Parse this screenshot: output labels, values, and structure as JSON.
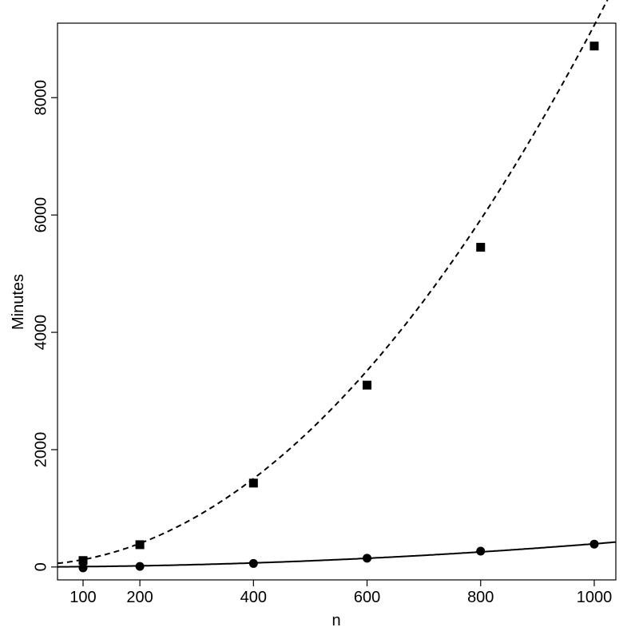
{
  "chart_data": {
    "type": "scatter",
    "title": "",
    "xlabel": "n",
    "ylabel": "Minutes",
    "xlim": [
      55,
      1038
    ],
    "ylim": [
      -220,
      9270
    ],
    "xticks": [
      100,
      200,
      400,
      600,
      800,
      1000
    ],
    "yticks": [
      0,
      2000,
      4000,
      6000,
      8000
    ],
    "grid": false,
    "legend": "none",
    "series": [
      {
        "marker": "square",
        "line_style": "dashed",
        "color": "#000000",
        "x": [
          100,
          200,
          400,
          600,
          800,
          1000
        ],
        "y": [
          110,
          380,
          1430,
          3100,
          5450,
          8880
        ],
        "fit": {
          "form": "quadratic",
          "coef": [
            34.0,
            0.0,
            0.0092
          ]
        }
      },
      {
        "marker": "circle",
        "line_style": "solid",
        "color": "#000000",
        "x": [
          100,
          200,
          400,
          600,
          800,
          1000
        ],
        "y": [
          -15,
          10,
          60,
          150,
          270,
          390
        ],
        "fit": {
          "form": "quadratic",
          "coef": [
            0.0,
            0.025,
            0.00037
          ]
        }
      }
    ]
  }
}
